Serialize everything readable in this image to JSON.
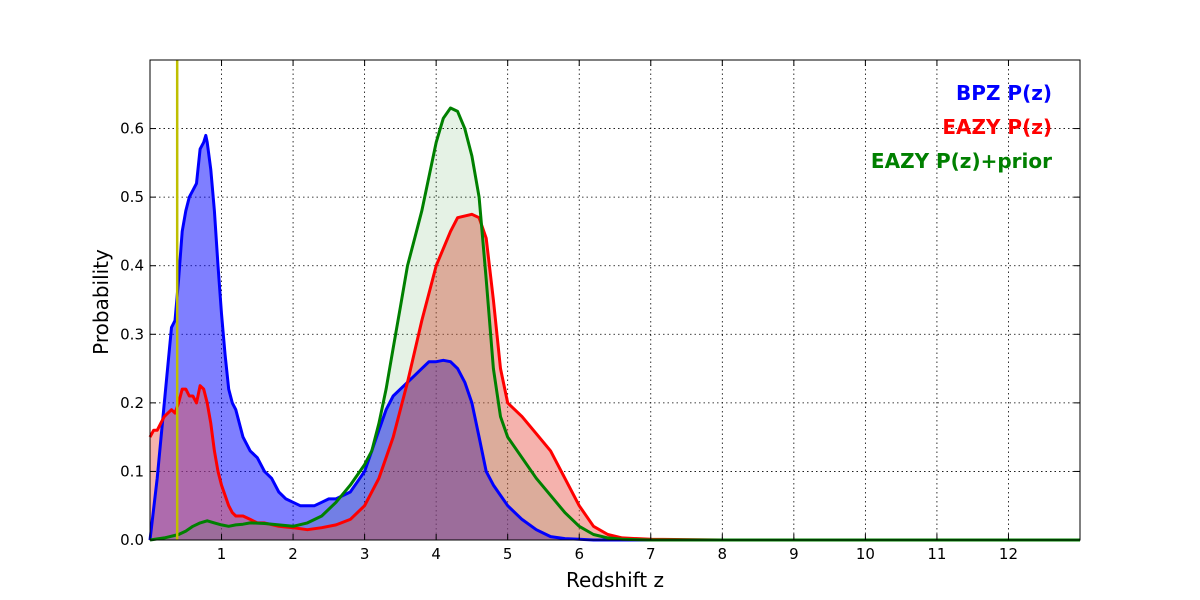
{
  "chart_data": {
    "type": "area",
    "title": "",
    "xlabel": "Redshift z",
    "ylabel": "Probability",
    "xlim": [
      0,
      13
    ],
    "ylim": [
      0,
      0.7
    ],
    "xticks": [
      1,
      2,
      3,
      4,
      5,
      6,
      7,
      8,
      9,
      10,
      11,
      12
    ],
    "yticks": [
      0.0,
      0.1,
      0.2,
      0.3,
      0.4,
      0.5,
      0.6
    ],
    "ytick_labels": [
      "0.0",
      "0.1",
      "0.2",
      "0.3",
      "0.4",
      "0.5",
      "0.6"
    ],
    "grid": true,
    "legend_position": "top-right",
    "vline": {
      "x": 0.38,
      "color": "#bfbf00"
    },
    "series": [
      {
        "name": "BPZ P(z)",
        "color": "#0000ff",
        "fill": "#0000ff",
        "fill_opacity": 0.5,
        "x": [
          0,
          0.1,
          0.2,
          0.3,
          0.35,
          0.4,
          0.45,
          0.5,
          0.55,
          0.6,
          0.65,
          0.7,
          0.75,
          0.78,
          0.8,
          0.85,
          0.9,
          0.95,
          1.0,
          1.05,
          1.1,
          1.15,
          1.2,
          1.3,
          1.4,
          1.5,
          1.6,
          1.7,
          1.8,
          1.9,
          2.0,
          2.1,
          2.2,
          2.3,
          2.4,
          2.5,
          2.6,
          2.7,
          2.8,
          2.9,
          3.0,
          3.1,
          3.2,
          3.3,
          3.4,
          3.5,
          3.6,
          3.7,
          3.8,
          3.9,
          4.0,
          4.1,
          4.2,
          4.3,
          4.4,
          4.5,
          4.6,
          4.7,
          4.8,
          4.9,
          5.0,
          5.2,
          5.4,
          5.6,
          5.8,
          6.0,
          6.2,
          6.5,
          7.0,
          8.0,
          13.0
        ],
        "values": [
          0.0,
          0.09,
          0.2,
          0.31,
          0.32,
          0.38,
          0.45,
          0.48,
          0.5,
          0.51,
          0.52,
          0.57,
          0.58,
          0.59,
          0.58,
          0.54,
          0.48,
          0.4,
          0.33,
          0.27,
          0.22,
          0.2,
          0.19,
          0.15,
          0.13,
          0.12,
          0.1,
          0.09,
          0.07,
          0.06,
          0.055,
          0.05,
          0.05,
          0.05,
          0.055,
          0.06,
          0.06,
          0.065,
          0.07,
          0.085,
          0.1,
          0.13,
          0.16,
          0.19,
          0.21,
          0.22,
          0.23,
          0.24,
          0.25,
          0.26,
          0.26,
          0.262,
          0.26,
          0.25,
          0.23,
          0.2,
          0.15,
          0.1,
          0.08,
          0.065,
          0.05,
          0.03,
          0.015,
          0.005,
          0.002,
          0.001,
          0.0,
          0.0,
          0.0,
          0.0,
          0.0
        ]
      },
      {
        "name": "EAZY P(z)",
        "color": "#ff0000",
        "fill": "#e8554a",
        "fill_opacity": 0.45,
        "x": [
          0,
          0.05,
          0.1,
          0.15,
          0.2,
          0.25,
          0.3,
          0.35,
          0.4,
          0.45,
          0.5,
          0.55,
          0.6,
          0.65,
          0.7,
          0.75,
          0.8,
          0.85,
          0.9,
          0.95,
          1.0,
          1.05,
          1.1,
          1.15,
          1.2,
          1.3,
          1.4,
          1.5,
          1.6,
          1.8,
          2.0,
          2.2,
          2.4,
          2.6,
          2.8,
          3.0,
          3.2,
          3.4,
          3.6,
          3.8,
          4.0,
          4.2,
          4.3,
          4.5,
          4.6,
          4.7,
          4.8,
          4.9,
          5.0,
          5.2,
          5.4,
          5.6,
          5.8,
          6.0,
          6.2,
          6.4,
          6.6,
          7.0,
          8.0,
          13.0
        ],
        "values": [
          0.15,
          0.16,
          0.16,
          0.17,
          0.18,
          0.185,
          0.19,
          0.185,
          0.2,
          0.22,
          0.22,
          0.21,
          0.21,
          0.2,
          0.225,
          0.22,
          0.2,
          0.17,
          0.13,
          0.1,
          0.08,
          0.065,
          0.05,
          0.04,
          0.035,
          0.035,
          0.03,
          0.025,
          0.025,
          0.02,
          0.018,
          0.015,
          0.018,
          0.022,
          0.03,
          0.05,
          0.09,
          0.15,
          0.23,
          0.32,
          0.4,
          0.45,
          0.47,
          0.475,
          0.47,
          0.44,
          0.35,
          0.25,
          0.2,
          0.18,
          0.155,
          0.13,
          0.09,
          0.05,
          0.02,
          0.008,
          0.003,
          0.001,
          0.0,
          0.0
        ]
      },
      {
        "name": "EAZY P(z)+prior",
        "color": "#008000",
        "fill": "#008000",
        "fill_opacity": 0.1,
        "x": [
          0,
          0.2,
          0.4,
          0.5,
          0.6,
          0.7,
          0.8,
          0.9,
          1.0,
          1.1,
          1.2,
          1.3,
          1.4,
          1.6,
          1.8,
          2.0,
          2.2,
          2.4,
          2.6,
          2.8,
          3.0,
          3.1,
          3.2,
          3.3,
          3.4,
          3.5,
          3.6,
          3.7,
          3.8,
          3.9,
          4.0,
          4.1,
          4.2,
          4.3,
          4.4,
          4.5,
          4.6,
          4.7,
          4.8,
          4.9,
          5.0,
          5.2,
          5.4,
          5.6,
          5.8,
          6.0,
          6.2,
          6.4,
          6.6,
          7.0,
          8.0,
          13.0
        ],
        "values": [
          0.0,
          0.003,
          0.008,
          0.013,
          0.02,
          0.025,
          0.028,
          0.025,
          0.022,
          0.02,
          0.022,
          0.023,
          0.025,
          0.024,
          0.022,
          0.02,
          0.025,
          0.035,
          0.055,
          0.08,
          0.11,
          0.13,
          0.17,
          0.22,
          0.28,
          0.34,
          0.4,
          0.44,
          0.48,
          0.53,
          0.58,
          0.615,
          0.63,
          0.625,
          0.6,
          0.56,
          0.5,
          0.38,
          0.25,
          0.18,
          0.15,
          0.12,
          0.09,
          0.065,
          0.04,
          0.02,
          0.008,
          0.003,
          0.001,
          0.0,
          0.0,
          0.0
        ]
      }
    ]
  }
}
